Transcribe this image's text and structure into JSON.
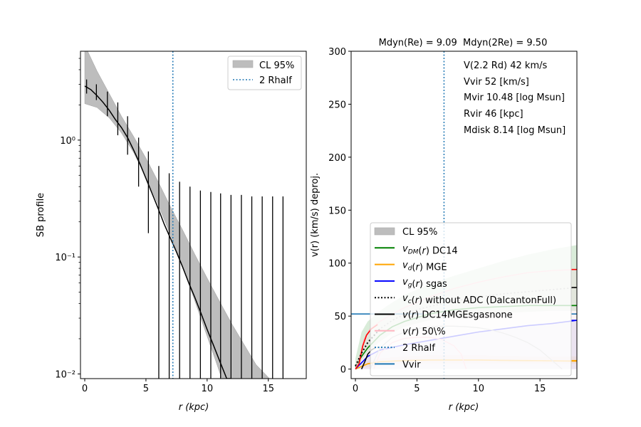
{
  "chart_data": [
    {
      "type": "line",
      "panel": "left",
      "title": "",
      "xlabel": "r (kpc)",
      "ylabel": "SB profile",
      "xlim": [
        -0.35,
        18.1
      ],
      "ylim_log10": [
        -2.04,
        0.76
      ],
      "yscale": "log",
      "xticks": [
        0,
        5,
        10,
        15
      ],
      "xtick_labels": [
        "0",
        "5",
        "10",
        "15"
      ],
      "yticks_log10": [
        0,
        -1,
        -2
      ],
      "ytick_labels": [
        "10⁰",
        "10⁻¹",
        "10⁻²"
      ],
      "legend_position": "upper right",
      "legend": [
        {
          "label": "CL 95%",
          "style": "patch",
          "color": "#bdbdbd"
        },
        {
          "label": "2 Rhalf",
          "style": "dotted",
          "color": "#1f77b4"
        }
      ],
      "model_curve": {
        "name": "SB model",
        "color": "#000000",
        "x": [
          0,
          0.5,
          1,
          1.5,
          2,
          2.5,
          3,
          3.5,
          4,
          4.5,
          5,
          5.5,
          6,
          6.5,
          7,
          7.5,
          8,
          8.5,
          9,
          9.5,
          10,
          10.5,
          11,
          11.5,
          12
        ],
        "y": [
          2.9,
          2.7,
          2.4,
          2.1,
          1.8,
          1.5,
          1.28,
          1.05,
          0.82,
          0.63,
          0.47,
          0.35,
          0.26,
          0.19,
          0.145,
          0.11,
          0.082,
          0.06,
          0.045,
          0.033,
          0.024,
          0.0178,
          0.0131,
          0.0097,
          0.0071
        ]
      },
      "confidence_band": {
        "name": "CL 95%",
        "color": "#bdbdbd",
        "x": [
          0,
          1,
          2,
          3,
          4,
          5,
          6,
          7,
          8,
          9,
          10,
          11,
          12,
          13,
          14,
          15.2
        ],
        "lower": [
          2.05,
          1.9,
          1.55,
          1.15,
          0.78,
          0.48,
          0.28,
          0.155,
          0.082,
          0.042,
          0.021,
          0.0105,
          0.0052,
          0.0026,
          0.0013,
          0.0006
        ],
        "upper": [
          6.5,
          3.9,
          2.5,
          1.6,
          1.07,
          0.7,
          0.44,
          0.27,
          0.17,
          0.105,
          0.066,
          0.042,
          0.027,
          0.018,
          0.012,
          0.0089
        ]
      },
      "data_points": {
        "name": "SB data with error bars",
        "color": "#000000",
        "x": [
          0.15,
          0.95,
          1.85,
          2.7,
          3.5,
          4.4,
          5.2,
          6.05,
          6.9,
          7.75,
          8.6,
          9.45,
          10.3,
          11.1,
          11.95,
          12.8,
          13.65,
          14.5,
          15.35,
          16.2
        ],
        "y": [
          2.9,
          2.6,
          2.1,
          1.6,
          1.15,
          0.75,
          0.48,
          0.3,
          0.16,
          0.08,
          0.04,
          0.02,
          0.01,
          0.005,
          0.0025,
          0.0012,
          0.0006,
          0.0003,
          0.00015,
          8e-05
        ],
        "err_low": [
          2.5,
          2.2,
          1.6,
          1.1,
          0.75,
          0.4,
          0.16,
          0.001,
          0.001,
          0.001,
          0.001,
          0.001,
          0.001,
          0.001,
          0.001,
          0.001,
          0.001,
          0.001,
          0.001,
          0.001
        ],
        "err_high": [
          3.3,
          3.0,
          2.6,
          2.1,
          1.6,
          1.05,
          0.8,
          0.6,
          0.52,
          0.44,
          0.4,
          0.37,
          0.36,
          0.35,
          0.34,
          0.34,
          0.33,
          0.33,
          0.33,
          0.33
        ]
      },
      "vline": {
        "name": "2 Rhalf",
        "x": 7.2,
        "color": "#1f77b4"
      }
    },
    {
      "type": "line",
      "panel": "right",
      "title": "Mdyn(Re) = 9.09  Mdyn(2Re) = 9.50",
      "xlabel": "r (kpc)",
      "ylabel": "v(r) (km/s) deproj.",
      "xlim": [
        -0.35,
        18.0
      ],
      "ylim": [
        -9,
        300
      ],
      "xticks": [
        0,
        5,
        10,
        15
      ],
      "xtick_labels": [
        "0",
        "5",
        "10",
        "15"
      ],
      "yticks": [
        0,
        50,
        100,
        150,
        200,
        250,
        300
      ],
      "ytick_labels": [
        "0",
        "50",
        "100",
        "150",
        "200",
        "250",
        "300"
      ],
      "annotations": [
        "V(2.2 Rd) 42 km/s",
        "Vvir 52 [km/s]",
        "Mvir 10.48 [log Msun]",
        "Rvir 46 [kpc]",
        "Mdisk 8.14 [log Msun]"
      ],
      "legend_position": "lower center",
      "legend": [
        {
          "label": "CL 95%",
          "style": "patch",
          "color": "#bdbdbd"
        },
        {
          "label": "v_DM(r) DC14",
          "style": "solid",
          "color": "#008000"
        },
        {
          "label": "v_d(r) MGE",
          "style": "solid",
          "color": "#ffa500"
        },
        {
          "label": "v_g(r) sgas",
          "style": "solid",
          "color": "#0000ff"
        },
        {
          "label": "v_c(r) without ADC (DalcantonFull)",
          "style": "dotted",
          "color": "#000000"
        },
        {
          "label": "v(r) DC14MGEsgasnone",
          "style": "solid",
          "color": "#000000"
        },
        {
          "label": "v(r) 50\\%",
          "style": "solid",
          "color": "#ffb6c1"
        },
        {
          "label": "2 Rhalf",
          "style": "dotted",
          "color": "#1f77b4"
        },
        {
          "label": "Vvir",
          "style": "solid",
          "color": "#1f77b4"
        }
      ],
      "series": [
        {
          "name": "v_DM(r) DC14",
          "color": "#008000",
          "x": [
            0,
            0.5,
            1,
            2,
            3,
            4,
            6,
            8,
            10,
            12,
            14,
            16,
            18
          ],
          "y": [
            2,
            12,
            20,
            32,
            40,
            45,
            52,
            56,
            58,
            59,
            60,
            60,
            60
          ]
        },
        {
          "name": "v_DM band",
          "color": "#008000",
          "band": true,
          "x": [
            0,
            0.5,
            1,
            2,
            3,
            4,
            6,
            8,
            10,
            12,
            14,
            16,
            18
          ],
          "lower": [
            0,
            8,
            16,
            26,
            34,
            40,
            46,
            50,
            52,
            53,
            54,
            55,
            55
          ],
          "upper": [
            10,
            35,
            45,
            55,
            63,
            70,
            80,
            88,
            95,
            102,
            108,
            113,
            117
          ]
        },
        {
          "name": "v_d(r) MGE",
          "color": "#ffa500",
          "x": [
            0,
            1,
            2,
            4,
            6,
            8,
            10,
            12,
            14,
            16,
            18
          ],
          "y": [
            0,
            5,
            7,
            8,
            8.5,
            8.5,
            8.5,
            8.2,
            8,
            7.8,
            7.5
          ]
        },
        {
          "name": "v_d band",
          "color": "#ffa500",
          "band": true,
          "x": [
            0,
            1,
            2,
            4,
            6,
            8,
            10,
            12,
            14,
            16,
            18
          ],
          "lower": [
            0,
            2,
            4,
            5,
            5,
            5,
            5,
            5,
            5,
            5,
            5
          ],
          "upper": [
            2,
            8,
            10,
            12,
            13,
            13,
            13,
            12.5,
            12,
            12,
            12
          ]
        },
        {
          "name": "v_g(r) sgas",
          "color": "#0000ff",
          "x": [
            0,
            1,
            2,
            4,
            6,
            8,
            10,
            12,
            14,
            16,
            18
          ],
          "y": [
            0,
            12,
            18,
            23,
            27,
            31,
            35,
            38,
            41,
            43,
            46
          ]
        },
        {
          "name": "v_c(r) without ADC (DalcantonFull)",
          "color": "#000000",
          "dash": "dotted",
          "x": [
            0,
            0.5,
            1,
            2,
            3,
            4,
            5,
            6,
            8,
            10,
            12,
            14,
            16,
            18
          ],
          "y": [
            3,
            15,
            25,
            38,
            46,
            52,
            56,
            59,
            64,
            68,
            71,
            73,
            75,
            77
          ]
        },
        {
          "name": "v(r) DC14MGEsgasnone",
          "color": "#000000",
          "x": [
            0.5,
            0.8,
            1.0,
            1.3,
            1.6
          ],
          "y": [
            0,
            8,
            14,
            18,
            20
          ]
        },
        {
          "name": "v(r) 50%",
          "color": "#ffb6c1",
          "x": [
            0,
            0.3,
            0.7,
            1.2,
            2,
            3,
            4,
            6,
            8,
            10,
            12,
            14,
            16,
            18
          ],
          "y": [
            0,
            10,
            28,
            38,
            45,
            52,
            58,
            68,
            76,
            82,
            87,
            91,
            93,
            94
          ]
        },
        {
          "name": "red curve",
          "color": "#ff0000",
          "x": [
            0,
            0.3,
            0.6,
            0.9,
            1.3,
            1.8
          ],
          "y": [
            0,
            5,
            22,
            32,
            38,
            42
          ]
        },
        {
          "name": "gray arc",
          "color": "#bbbbbb",
          "x": [
            1.2,
            2,
            3,
            4,
            5,
            6,
            7,
            8,
            9,
            10,
            11,
            12,
            13,
            14,
            15,
            16,
            16.8
          ],
          "y": [
            0,
            20,
            30,
            35,
            38,
            40,
            40.5,
            40.5,
            40,
            39,
            37,
            34,
            30,
            25,
            18,
            8,
            0
          ]
        },
        {
          "name": "pink arc",
          "color": "#ffb6c1",
          "x": [
            1.5,
            2,
            3,
            4,
            5,
            6,
            7,
            8,
            8.6,
            9
          ],
          "y": [
            0,
            15,
            25,
            29,
            30,
            30,
            28,
            22,
            14,
            0
          ]
        }
      ],
      "hlines": [
        {
          "name": "Vvir",
          "y": 52,
          "color": "#1f77b4",
          "xmax": 5.5
        }
      ],
      "vline": {
        "name": "2 Rhalf",
        "x": 7.2,
        "color": "#1f77b4"
      }
    }
  ]
}
